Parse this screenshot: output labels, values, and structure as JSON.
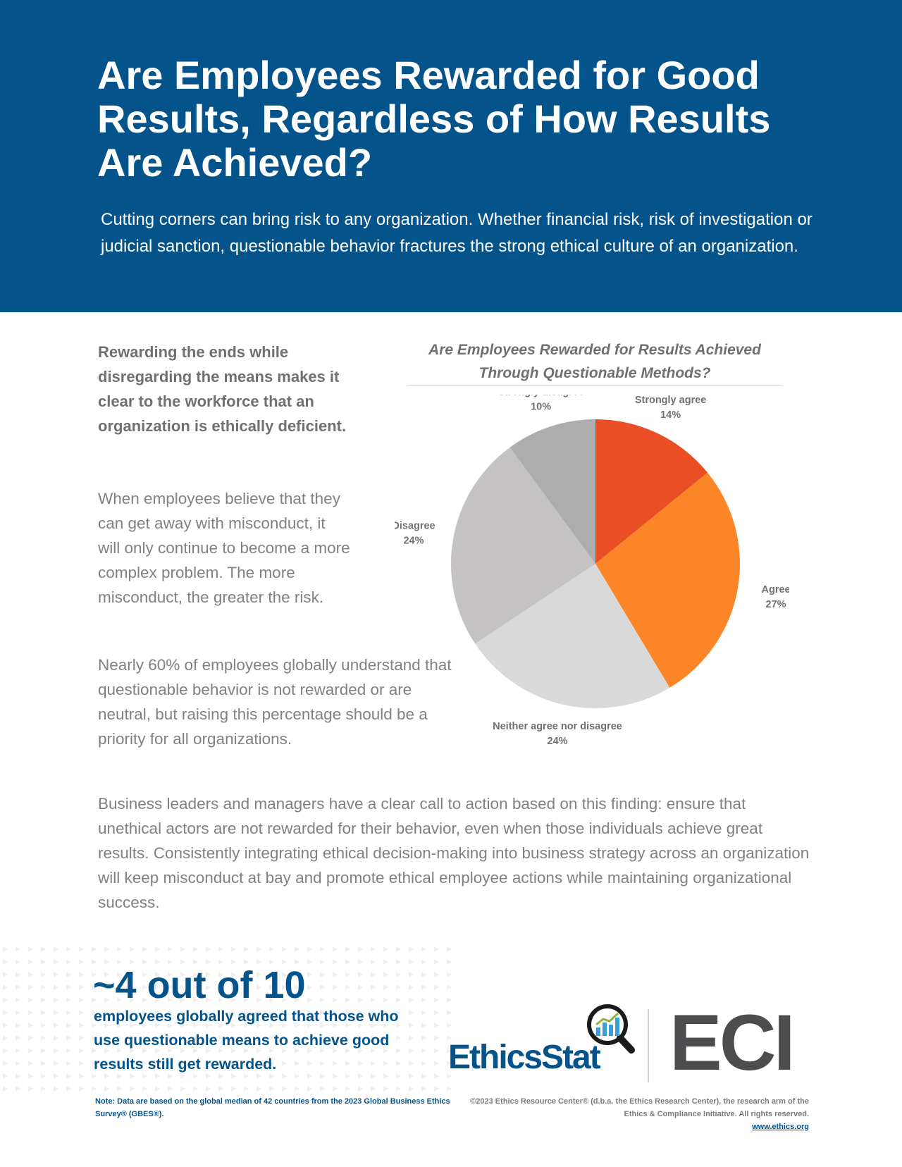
{
  "header": {
    "title": "Are Employees Rewarded for Good Results, Regardless of How Results Are Achieved?",
    "intro": "Cutting corners can bring risk to any organization. Whether financial risk, risk of investigation or judicial sanction, questionable behavior fractures the strong ethical culture of an organization."
  },
  "body": {
    "lead": "Rewarding the ends while disregarding the means makes it clear to the workforce that an organization is ethically deficient.",
    "paragraph_1": "When employees believe that they can get away with misconduct, it will only continue to become a more complex problem. The more misconduct, the greater the risk.",
    "paragraph_2": "Nearly 60% of employees globally understand that questionable behavior is not rewarded or are neutral, but raising this percentage should be a priority for all organizations.",
    "paragraph_3": "Business leaders and managers have a clear call to action based on this finding: ensure that unethical actors are not rewarded for their behavior, even when those individuals achieve great results. Consistently integrating ethical decision-making into business strategy across an organization will keep misconduct at bay and promote ethical employee actions while maintaining organizational success."
  },
  "chart_data": {
    "type": "pie",
    "title": "Are Employees Rewarded for Results Achieved Through Questionable Methods?",
    "categories": [
      "Strongly agree",
      "Agree",
      "Neither agree nor disagree",
      "Disagree",
      "Strongly disagree"
    ],
    "values": [
      14,
      27,
      24,
      24,
      10
    ],
    "value_labels": [
      "14%",
      "27%",
      "24%",
      "24%",
      "10%"
    ],
    "colors": [
      "#e94e24",
      "#fb8527",
      "#d9d9da",
      "#c4c2c2",
      "#aeadae"
    ],
    "start": "12 o'clock",
    "direction": "clockwise"
  },
  "stat": {
    "headline": "~4 out of 10",
    "text": "employees globally agreed that those who use questionable means to achieve good results still get rewarded."
  },
  "logos": {
    "ethicsstat": "EthicsStat",
    "eci": "ECI",
    "brand_blue": "#04538a",
    "eci_gray": "#4d4d4f"
  },
  "footer": {
    "note": "Note: Data are based on the global median of 42 countries from the 2023 Global Business Ethics Survey® (GBES®).",
    "copyright": "©2023 Ethics Resource Center® (d.b.a. the Ethics Research Center), the research arm of the Ethics & Compliance Initiative. All rights reserved.",
    "url": "www.ethics.org"
  }
}
